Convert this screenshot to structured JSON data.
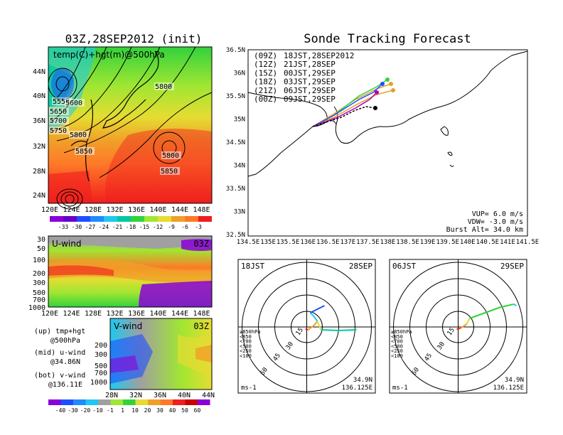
{
  "colors": {
    "purple": "#8a00d8",
    "blue": "#1e4fff",
    "cyan": "#1ec8f0",
    "teal": "#00c8a0",
    "green": "#32d23c",
    "lime": "#a0e632",
    "yellow": "#e6dc32",
    "orange": "#f0a028",
    "deeporange": "#ff7828",
    "red": "#f01e1e",
    "darkred": "#c80000",
    "grey": "#a0a0a0"
  },
  "upper_panel": {
    "title": "03Z,28SEP2012 (init)",
    "label": "temp(C)+hgt(m)@500hPa",
    "lat_ticks": [
      "44N",
      "40N",
      "36N",
      "32N",
      "28N",
      "24N"
    ],
    "lon_ticks": [
      "120E",
      "124E",
      "128E",
      "132E",
      "136E",
      "140E",
      "144E",
      "148E"
    ],
    "contour_labels": [
      "5550",
      "5600",
      "5650",
      "5700",
      "5750",
      "5800",
      "5800",
      "5850",
      "5800",
      "5850"
    ],
    "colorbar": [
      "-33",
      "-30",
      "-27",
      "-24",
      "-21",
      "-18",
      "-15",
      "-12",
      "-9",
      "-6",
      "-3"
    ]
  },
  "u_panel": {
    "label": "U-wind",
    "time": "03Z",
    "p_ticks": [
      "30",
      "50",
      "100",
      "200",
      "300",
      "500",
      "700",
      "1000"
    ],
    "lon_ticks": [
      "120E",
      "124E",
      "128E",
      "132E",
      "136E",
      "140E",
      "144E",
      "148E"
    ]
  },
  "v_panel": {
    "label": "V-wind",
    "time": "03Z",
    "p_ticks": [
      "200",
      "300",
      "500",
      "700",
      "1000"
    ],
    "lat_ticks": [
      "28N",
      "32N",
      "36N",
      "40N",
      "44N"
    ],
    "colorbar": [
      "-40",
      "-30",
      "-20",
      "-10",
      "-1",
      "1",
      "10",
      "20",
      "30",
      "40",
      "50",
      "60"
    ]
  },
  "legend_text": [
    "(up) tmp+hgt",
    "@500hPa",
    "(mid) u-wind",
    "@34.86N",
    "(bot) v-wind",
    "@136.11E"
  ],
  "track": {
    "title": "Sonde Tracking Forecast",
    "lat_ticks": [
      "36.5N",
      "36N",
      "35.5N",
      "35N",
      "34.5N",
      "34N",
      "33.5N",
      "33N",
      "32.5N"
    ],
    "lon_ticks": [
      "134.5E",
      "135E",
      "135.5E",
      "136E",
      "136.5E",
      "137E",
      "137.5E",
      "138E",
      "138.5E",
      "139E",
      "139.5E",
      "140E",
      "140.5E",
      "141E",
      "141.5E"
    ],
    "launches": [
      {
        "code": "(09Z)",
        "text": "18JST,28SEP2012",
        "color": "#000000"
      },
      {
        "code": "(12Z)",
        "text": "21JST,28SEP",
        "color": "#b400b4"
      },
      {
        "code": "(15Z)",
        "text": "00JST,29SEP",
        "color": "#1e4fff"
      },
      {
        "code": "(18Z)",
        "text": "03JST,29SEP",
        "color": "#32d23c"
      },
      {
        "code": "(21Z)",
        "text": "06JST,29SEP",
        "color": "#e6a028"
      },
      {
        "code": "(00Z)",
        "text": "09JST,29SEP",
        "color": "#e6a028"
      }
    ],
    "params": [
      "VUP=  6.0 m/s",
      "VDW= -3.0 m/s",
      "Burst Alt= 34.0 km"
    ]
  },
  "hodo_left": {
    "time": "18JST",
    "date": "28SEP",
    "rings": [
      "15",
      "30",
      "45",
      "60"
    ],
    "legend": [
      "≥850hPa",
      "<850",
      "<700",
      "<500",
      "<250",
      "<100"
    ],
    "unit": "ms-1",
    "loc": [
      "34.9N",
      "136.125E"
    ]
  },
  "hodo_right": {
    "time": "06JST",
    "date": "29SEP",
    "rings": [
      "15",
      "30",
      "45",
      "60"
    ],
    "legend": [
      "≥850hPa",
      "<850",
      "<700",
      "<500",
      "<250",
      "<100"
    ],
    "unit": "ms-1",
    "loc": [
      "34.9N",
      "136.125E"
    ]
  }
}
